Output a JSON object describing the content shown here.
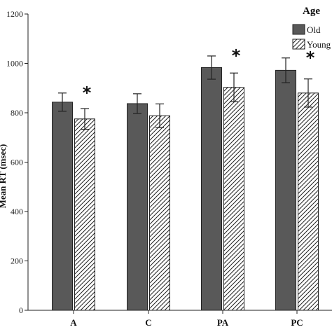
{
  "chart_data": {
    "type": "bar",
    "categories": [
      "A",
      "C",
      "PA",
      "PC"
    ],
    "series": [
      {
        "name": "Old",
        "values": [
          843,
          837,
          983,
          972
        ],
        "errors": [
          37,
          40,
          47,
          50
        ],
        "fill": "#595959",
        "pattern": "solid"
      },
      {
        "name": "Young",
        "values": [
          775,
          788,
          903,
          880
        ],
        "errors": [
          42,
          48,
          58,
          57
        ],
        "fill": "#ffffff",
        "pattern": "diagonal-hatch"
      }
    ],
    "significance": [
      "*",
      "",
      "*",
      "*"
    ],
    "ylabel": "Mean RT (msec)",
    "yticks": [
      0,
      200,
      400,
      600,
      800,
      1000,
      1200
    ],
    "ylim": [
      0,
      1200
    ],
    "legend_title": "Age",
    "legend_placement": "top-right",
    "grid": false
  }
}
